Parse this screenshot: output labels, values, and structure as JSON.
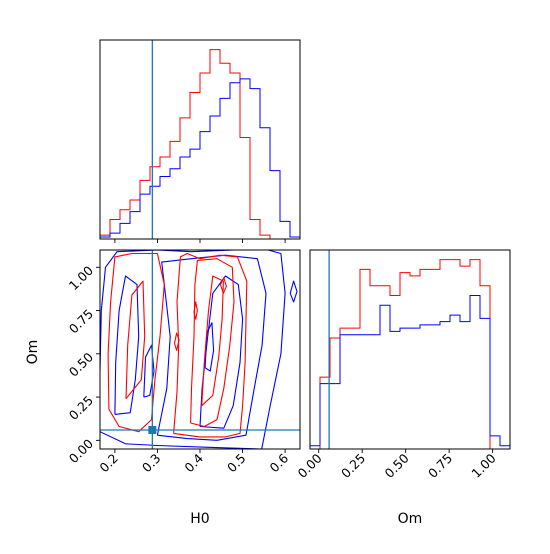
{
  "colors": {
    "red": "#ff0000",
    "blue": "#0000ff",
    "truth": "#1f77b4"
  },
  "chart_data": [
    {
      "panel": "H0-marginal",
      "type": "histogram",
      "xlim": [
        0.165,
        0.635
      ],
      "bin_edges": [
        0.165,
        0.1885,
        0.212,
        0.2355,
        0.259,
        0.2825,
        0.306,
        0.3295,
        0.353,
        0.3765,
        0.4,
        0.4235,
        0.447,
        0.4705,
        0.494,
        0.5175,
        0.541,
        0.5645,
        0.588,
        0.6115,
        0.635
      ],
      "series": [
        {
          "color": "red",
          "heights": [
            2,
            10,
            15,
            20,
            30,
            37,
            42,
            50,
            62,
            75,
            85,
            97,
            90,
            85,
            52,
            10,
            2,
            0,
            0,
            0
          ]
        },
        {
          "color": "blue",
          "heights": [
            1,
            3,
            8,
            14,
            23,
            27,
            32,
            36,
            42,
            46,
            55,
            63,
            72,
            80,
            82,
            77,
            57,
            35,
            9,
            1
          ]
        }
      ],
      "truth_x": 0.288
    },
    {
      "panel": "H0-Om-2D",
      "type": "contour",
      "xlabel": "H0",
      "ylabel": "Om",
      "xlim": [
        0.165,
        0.635
      ],
      "ylim": [
        -0.05,
        1.1
      ],
      "xticks": [
        "0.2",
        "0.3",
        "0.4",
        "0.5",
        "0.6"
      ],
      "yticks": [
        "0.00",
        "0.25",
        "0.50",
        "0.75",
        "1.00"
      ],
      "truth": [
        0.288,
        0.06
      ],
      "levels_red": [
        [
          [
            0.338,
            0.04
          ],
          [
            0.346,
            0.28
          ],
          [
            0.35,
            0.55
          ],
          [
            0.346,
            0.8
          ],
          [
            0.354,
            1.06
          ],
          [
            0.37,
            1.08
          ],
          [
            0.4,
            1.05
          ],
          [
            0.447,
            1.07
          ],
          [
            0.488,
            1.06
          ],
          [
            0.51,
            0.92
          ],
          [
            0.508,
            0.7
          ],
          [
            0.506,
            0.45
          ],
          [
            0.5,
            0.2
          ],
          [
            0.494,
            0.04
          ],
          [
            0.46,
            0.02
          ],
          [
            0.4,
            0.02
          ],
          [
            0.338,
            0.04
          ]
        ],
        [
          [
            0.378,
            0.1
          ],
          [
            0.38,
            0.3
          ],
          [
            0.386,
            0.6
          ],
          [
            0.388,
            0.9
          ],
          [
            0.394,
            1.04
          ],
          [
            0.44,
            1.05
          ],
          [
            0.476,
            1.0
          ],
          [
            0.48,
            0.8
          ],
          [
            0.47,
            0.55
          ],
          [
            0.456,
            0.3
          ],
          [
            0.44,
            0.12
          ],
          [
            0.41,
            0.08
          ],
          [
            0.378,
            0.1
          ]
        ],
        [
          [
            0.404,
            0.2
          ],
          [
            0.41,
            0.45
          ],
          [
            0.42,
            0.75
          ],
          [
            0.43,
            0.95
          ],
          [
            0.455,
            0.92
          ],
          [
            0.452,
            0.7
          ],
          [
            0.444,
            0.48
          ],
          [
            0.43,
            0.26
          ],
          [
            0.404,
            0.2
          ]
        ],
        [
          [
            0.186,
            0.18
          ],
          [
            0.184,
            0.5
          ],
          [
            0.19,
            0.8
          ],
          [
            0.2,
            1.06
          ],
          [
            0.24,
            1.08
          ],
          [
            0.3,
            1.08
          ],
          [
            0.316,
            0.9
          ],
          [
            0.306,
            0.6
          ],
          [
            0.294,
            0.35
          ],
          [
            0.286,
            0.12
          ],
          [
            0.256,
            0.05
          ],
          [
            0.21,
            0.08
          ],
          [
            0.186,
            0.18
          ]
        ],
        [
          [
            0.226,
            0.24
          ],
          [
            0.23,
            0.55
          ],
          [
            0.24,
            0.84
          ],
          [
            0.266,
            0.92
          ],
          [
            0.27,
            0.6
          ],
          [
            0.262,
            0.35
          ],
          [
            0.226,
            0.24
          ]
        ],
        [
          [
            0.34,
            0.56
          ],
          [
            0.345,
            0.62
          ],
          [
            0.351,
            0.58
          ],
          [
            0.345,
            0.52
          ],
          [
            0.34,
            0.56
          ]
        ],
        [
          [
            0.386,
            0.74
          ],
          [
            0.39,
            0.8
          ],
          [
            0.394,
            0.75
          ],
          [
            0.39,
            0.7
          ],
          [
            0.386,
            0.74
          ]
        ],
        [
          [
            0.448,
            0.9
          ],
          [
            0.456,
            0.94
          ],
          [
            0.462,
            0.89
          ],
          [
            0.455,
            0.85
          ],
          [
            0.448,
            0.9
          ]
        ]
      ],
      "levels_blue": [
        [
          [
            0.165,
            0.05
          ],
          [
            0.225,
            -0.02
          ],
          [
            0.3,
            -0.03
          ],
          [
            0.42,
            -0.04
          ],
          [
            0.545,
            -0.05
          ],
          [
            0.565,
            0.2
          ],
          [
            0.59,
            0.5
          ],
          [
            0.6,
            0.85
          ],
          [
            0.59,
            1.08
          ],
          [
            0.56,
            1.1
          ],
          [
            0.48,
            1.1
          ],
          [
            0.38,
            1.09
          ],
          [
            0.3,
            1.1
          ],
          [
            0.205,
            1.09
          ],
          [
            0.178,
            1.0
          ],
          [
            0.168,
            0.75
          ],
          [
            0.165,
            0.4
          ]
        ],
        [
          [
            0.3,
            0.03
          ],
          [
            0.322,
            0.3
          ],
          [
            0.33,
            0.6
          ],
          [
            0.316,
            0.9
          ],
          [
            0.31,
            1.03
          ],
          [
            0.38,
            1.05
          ],
          [
            0.46,
            1.07
          ],
          [
            0.535,
            1.05
          ],
          [
            0.555,
            0.85
          ],
          [
            0.546,
            0.55
          ],
          [
            0.526,
            0.28
          ],
          [
            0.508,
            0.03
          ],
          [
            0.44,
            0.0
          ],
          [
            0.37,
            0.01
          ],
          [
            0.3,
            0.03
          ]
        ],
        [
          [
            0.4,
            0.08
          ],
          [
            0.405,
            0.3
          ],
          [
            0.418,
            0.6
          ],
          [
            0.43,
            0.85
          ],
          [
            0.46,
            0.95
          ],
          [
            0.49,
            0.9
          ],
          [
            0.5,
            0.7
          ],
          [
            0.494,
            0.45
          ],
          [
            0.478,
            0.2
          ],
          [
            0.456,
            0.07
          ],
          [
            0.4,
            0.08
          ]
        ],
        [
          [
            0.2,
            0.15
          ],
          [
            0.202,
            0.45
          ],
          [
            0.21,
            0.75
          ],
          [
            0.225,
            0.95
          ],
          [
            0.252,
            0.9
          ],
          [
            0.256,
            0.6
          ],
          [
            0.248,
            0.35
          ],
          [
            0.236,
            0.16
          ],
          [
            0.2,
            0.15
          ]
        ],
        [
          [
            0.268,
            0.25
          ],
          [
            0.272,
            0.48
          ],
          [
            0.286,
            0.55
          ],
          [
            0.292,
            0.4
          ],
          [
            0.282,
            0.26
          ],
          [
            0.268,
            0.25
          ]
        ],
        [
          [
            0.412,
            0.42
          ],
          [
            0.416,
            0.62
          ],
          [
            0.428,
            0.68
          ],
          [
            0.432,
            0.52
          ],
          [
            0.424,
            0.4
          ],
          [
            0.412,
            0.42
          ]
        ],
        [
          [
            0.612,
            0.85
          ],
          [
            0.62,
            0.92
          ],
          [
            0.628,
            0.86
          ],
          [
            0.62,
            0.8
          ],
          [
            0.612,
            0.85
          ]
        ]
      ]
    },
    {
      "panel": "Om-marginal",
      "type": "histogram",
      "xlabel": "Om",
      "xlim": [
        -0.05,
        1.1
      ],
      "xticks": [
        "0.00",
        "0.25",
        "0.50",
        "0.75",
        "1.00"
      ],
      "bin_edges": [
        -0.05,
        0.0075,
        0.065,
        0.1225,
        0.18,
        0.2375,
        0.295,
        0.3525,
        0.41,
        0.4675,
        0.525,
        0.5825,
        0.64,
        0.6975,
        0.755,
        0.8125,
        0.87,
        0.9275,
        0.985,
        1.0425,
        1.1
      ],
      "series": [
        {
          "color": "red",
          "heights": [
            0,
            22,
            34,
            37,
            37,
            55,
            50,
            50,
            47,
            54,
            53,
            55,
            55,
            58,
            58,
            56,
            58,
            50,
            0,
            0
          ]
        },
        {
          "color": "blue",
          "heights": [
            1,
            20,
            20,
            35,
            35,
            35,
            35,
            44,
            36,
            37,
            37,
            38,
            38,
            39,
            41,
            39,
            47,
            40,
            4,
            1
          ]
        }
      ],
      "truth_x": 0.06
    }
  ]
}
